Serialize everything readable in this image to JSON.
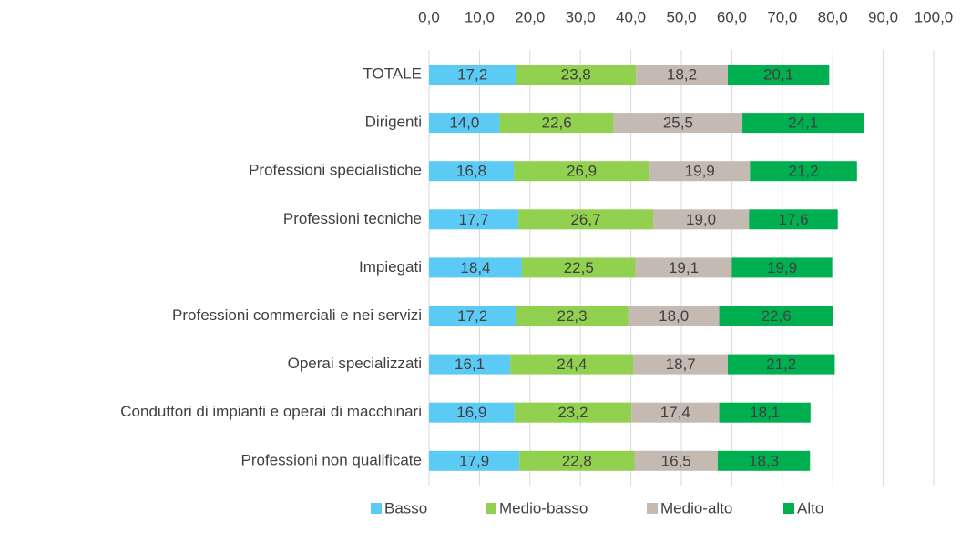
{
  "chart_data": {
    "type": "bar",
    "orientation": "horizontal",
    "stacked": true,
    "grid": true,
    "legend": "bottom",
    "categories": [
      "TOTALE",
      "Dirigenti",
      "Professioni specialistiche",
      "Professioni tecniche",
      "Impiegati",
      "Professioni commerciali e nei servizi",
      "Operai specializzati",
      "Conduttori di impianti e operai di macchinari",
      "Professioni non qualificate"
    ],
    "xlim": [
      0,
      100
    ],
    "xticks": [
      {
        "value": 0,
        "label": "0,0"
      },
      {
        "value": 10,
        "label": "10,0"
      },
      {
        "value": 20,
        "label": "20,0"
      },
      {
        "value": 30,
        "label": "30,0"
      },
      {
        "value": 40,
        "label": "40,0"
      },
      {
        "value": 50,
        "label": "50,0"
      },
      {
        "value": 60,
        "label": "60,0"
      },
      {
        "value": 70,
        "label": "70,0"
      },
      {
        "value": 80,
        "label": "80,0"
      },
      {
        "value": 90,
        "label": "90,0"
      },
      {
        "value": 100,
        "label": "100,0"
      }
    ],
    "series": [
      {
        "name": "Basso",
        "color": "#5bcbf5",
        "values": [
          17.2,
          14.0,
          16.8,
          17.7,
          18.4,
          17.2,
          16.1,
          16.9,
          17.9
        ],
        "value_labels": [
          "17,2",
          "14,0",
          "16,8",
          "17,7",
          "18,4",
          "17,2",
          "16,1",
          "16,9",
          "17,9"
        ]
      },
      {
        "name": "Medio-basso",
        "color": "#92d050",
        "values": [
          23.8,
          22.6,
          26.9,
          26.7,
          22.5,
          22.3,
          24.4,
          23.2,
          22.8
        ],
        "value_labels": [
          "23,8",
          "22,6",
          "26,9",
          "26,7",
          "22,5",
          "22,3",
          "24,4",
          "23,2",
          "22,8"
        ]
      },
      {
        "name": "Medio-alto",
        "color": "#c4bab2",
        "values": [
          18.2,
          25.5,
          19.9,
          19.0,
          19.1,
          18.0,
          18.7,
          17.4,
          16.5
        ],
        "value_labels": [
          "18,2",
          "25,5",
          "19,9",
          "19,0",
          "19,1",
          "18,0",
          "18,7",
          "17,4",
          "16,5"
        ]
      },
      {
        "name": "Alto",
        "color": "#00b050",
        "values": [
          20.1,
          24.1,
          21.2,
          17.6,
          19.9,
          22.6,
          21.2,
          18.1,
          18.3
        ],
        "value_labels": [
          "20,1",
          "24,1",
          "21,2",
          "17,6",
          "19,9",
          "22,6",
          "21,2",
          "18,1",
          "18,3"
        ]
      }
    ]
  }
}
